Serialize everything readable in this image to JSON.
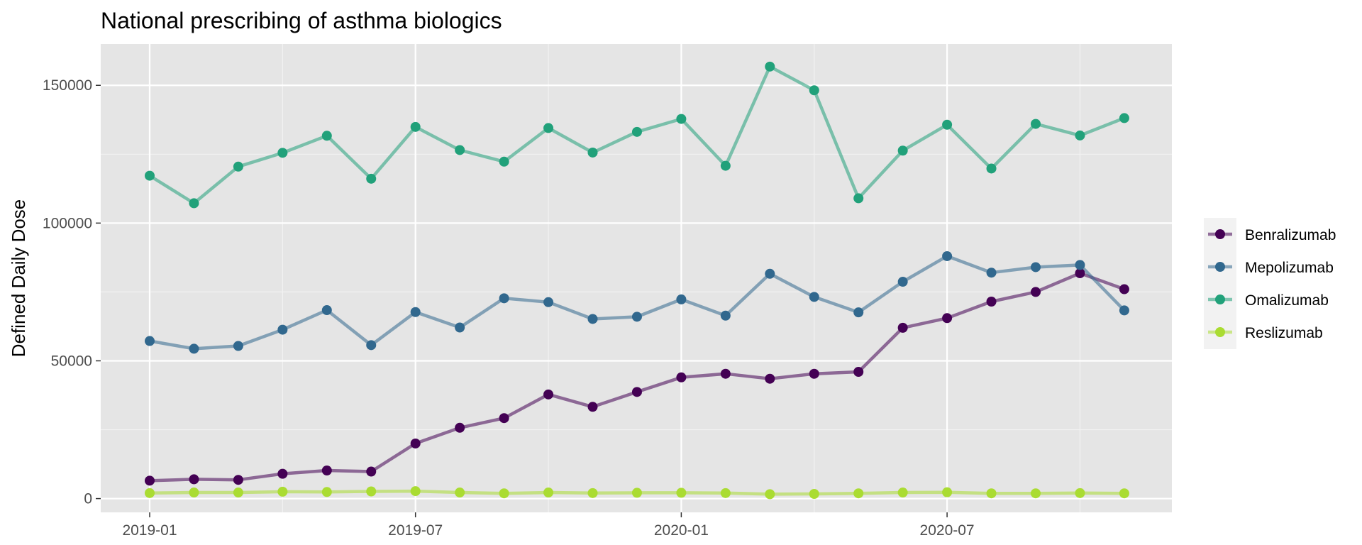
{
  "chart_data": {
    "type": "line",
    "title": "National prescribing of asthma biologics",
    "xlabel": "",
    "ylabel": "Defined Daily Dose",
    "x": [
      "2019-01",
      "2019-02",
      "2019-03",
      "2019-04",
      "2019-05",
      "2019-06",
      "2019-07",
      "2019-08",
      "2019-09",
      "2019-10",
      "2019-11",
      "2019-12",
      "2020-01",
      "2020-02",
      "2020-03",
      "2020-04",
      "2020-05",
      "2020-06",
      "2020-07",
      "2020-08",
      "2020-09",
      "2020-10",
      "2020-11"
    ],
    "x_ticks": [
      "2019-01",
      "2019-07",
      "2020-01",
      "2020-07"
    ],
    "y_ticks": [
      0,
      50000,
      100000,
      150000
    ],
    "y_tick_labels": [
      "0",
      "50000",
      "100000",
      "150000"
    ],
    "ylim": [
      -5000,
      165000
    ],
    "grid": true,
    "legend_position": "right",
    "series": [
      {
        "name": "Benralizumab",
        "color": "#440154",
        "values": [
          6500,
          7000,
          6800,
          9000,
          10200,
          9800,
          20000,
          25700,
          29200,
          37800,
          33300,
          38700,
          44000,
          45300,
          43500,
          45300,
          46000,
          62000,
          65500,
          71500,
          75000,
          81800,
          76000
        ]
      },
      {
        "name": "Mepolizumab",
        "color": "#31688e",
        "values": [
          57200,
          54400,
          55400,
          61300,
          68400,
          55700,
          67700,
          62100,
          72700,
          71300,
          65200,
          66000,
          72300,
          66400,
          81600,
          73200,
          67600,
          78700,
          88000,
          82000,
          84000,
          84800,
          68300
        ]
      },
      {
        "name": "Omalizumab",
        "color": "#21a17a",
        "values": [
          117200,
          107200,
          120500,
          125500,
          131700,
          116100,
          134900,
          126500,
          122300,
          134500,
          125600,
          133100,
          137800,
          120800,
          156800,
          148200,
          109000,
          126300,
          135700,
          119800,
          136000,
          131800,
          138100
        ]
      },
      {
        "name": "Reslizumab",
        "color": "#aadc32",
        "values": [
          2000,
          2200,
          2200,
          2500,
          2400,
          2600,
          2700,
          2200,
          1900,
          2200,
          2000,
          2100,
          2100,
          2000,
          1600,
          1700,
          1900,
          2200,
          2300,
          1900,
          1900,
          2000,
          1900
        ]
      }
    ]
  }
}
